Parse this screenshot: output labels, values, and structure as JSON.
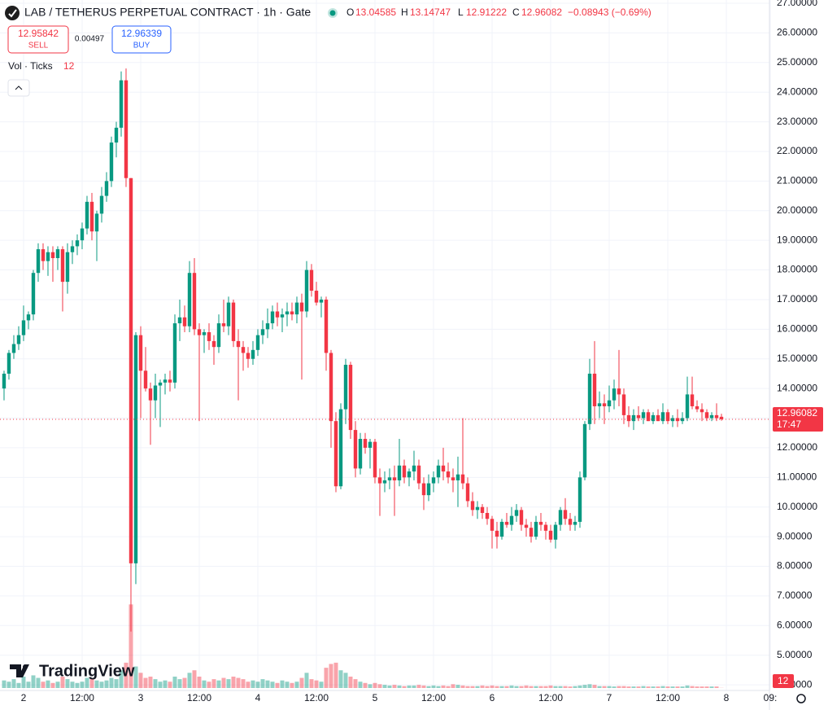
{
  "chart_data": {
    "type": "candlestick",
    "title": "LAB / TETHERUS PERPETUAL CONTRACT · 1h · Gate",
    "ohlc_labels": [
      "O",
      "H",
      "L",
      "C"
    ],
    "change_label": "−0.08943 (−0.69%)",
    "sell": {
      "price": 12.95842,
      "label": "SELL"
    },
    "spread": 0.00497,
    "buy": {
      "price": 12.96339,
      "label": "BUY"
    },
    "volume_label": "Vol · Ticks",
    "countdown": "17:47",
    "brand": "TradingView",
    "up_color": "#089981",
    "down_color": "#f23645",
    "grid": true,
    "xlim": [
      -0.83,
      156.83
    ],
    "ylim": [
      3.81,
      27.11
    ],
    "vlim": [
      0,
      9000
    ],
    "xticks": [
      {
        "value": 4,
        "label": "2"
      },
      {
        "value": 16,
        "label": "12:00"
      },
      {
        "value": 28,
        "label": "3"
      },
      {
        "value": 40,
        "label": "12:00"
      },
      {
        "value": 52,
        "label": "4"
      },
      {
        "value": 64,
        "label": "12:00"
      },
      {
        "value": 76,
        "label": "5"
      },
      {
        "value": 88,
        "label": "12:00"
      },
      {
        "value": 100,
        "label": "6"
      },
      {
        "value": 112,
        "label": "12:00"
      },
      {
        "value": 124,
        "label": "7"
      },
      {
        "value": 136,
        "label": "12:00"
      },
      {
        "value": 148,
        "label": "8"
      },
      {
        "value": 157,
        "label": "09:"
      }
    ],
    "yticks": [
      {
        "value": 27,
        "label": "27.00000"
      },
      {
        "value": 26,
        "label": "26.00000"
      },
      {
        "value": 25,
        "label": "25.00000"
      },
      {
        "value": 24,
        "label": "24.00000"
      },
      {
        "value": 23,
        "label": "23.00000"
      },
      {
        "value": 22,
        "label": "22.00000"
      },
      {
        "value": 21,
        "label": "21.00000"
      },
      {
        "value": 20,
        "label": "20.00000"
      },
      {
        "value": 19,
        "label": "19.00000"
      },
      {
        "value": 18,
        "label": "18.00000"
      },
      {
        "value": 17,
        "label": "17.00000"
      },
      {
        "value": 16,
        "label": "16.00000"
      },
      {
        "value": 15,
        "label": "15.00000"
      },
      {
        "value": 14,
        "label": "14.00000"
      },
      {
        "value": 13,
        "label": "13.00000"
      },
      {
        "value": 12,
        "label": "12.00000"
      },
      {
        "value": 11,
        "label": "11.00000"
      },
      {
        "value": 10,
        "label": "10.00000"
      },
      {
        "value": 9,
        "label": "9.00000"
      },
      {
        "value": 8,
        "label": "8.00000"
      },
      {
        "value": 7,
        "label": "7.00000"
      },
      {
        "value": 6,
        "label": "6.00000"
      },
      {
        "value": 5,
        "label": "5.00000"
      },
      {
        "value": 4,
        "label": "4.00000"
      }
    ],
    "candles": [
      [
        14.0,
        14.6,
        13.6,
        14.5
      ],
      [
        14.5,
        15.3,
        14.3,
        15.2
      ],
      [
        15.2,
        15.8,
        15.0,
        15.5
      ],
      [
        15.5,
        16.1,
        15.3,
        15.8
      ],
      [
        15.8,
        16.8,
        15.6,
        16.3
      ],
      [
        16.3,
        16.6,
        16.0,
        16.5
      ],
      [
        16.5,
        18.0,
        16.3,
        17.9
      ],
      [
        17.9,
        18.9,
        17.6,
        18.7
      ],
      [
        18.7,
        18.9,
        18.0,
        18.3
      ],
      [
        18.3,
        18.8,
        17.8,
        18.6
      ],
      [
        18.6,
        18.8,
        17.6,
        18.4
      ],
      [
        18.4,
        18.8,
        18.0,
        18.7
      ],
      [
        18.7,
        18.8,
        16.6,
        17.6
      ],
      [
        17.6,
        18.9,
        17.2,
        18.6
      ],
      [
        18.6,
        19.0,
        18.2,
        18.8
      ],
      [
        18.8,
        19.2,
        18.5,
        19.0
      ],
      [
        19.0,
        19.6,
        18.7,
        19.4
      ],
      [
        19.4,
        20.5,
        19.2,
        20.3
      ],
      [
        20.3,
        20.6,
        19.0,
        19.3
      ],
      [
        19.3,
        20.0,
        18.3,
        19.9
      ],
      [
        19.9,
        20.8,
        19.6,
        20.5
      ],
      [
        20.5,
        21.3,
        20.3,
        21.0
      ],
      [
        21.0,
        22.5,
        20.8,
        22.3
      ],
      [
        22.3,
        23.0,
        21.8,
        22.8
      ],
      [
        22.8,
        24.7,
        22.5,
        24.4
      ],
      [
        24.4,
        24.8,
        20.8,
        21.1
      ],
      [
        21.1,
        21.1,
        5.8,
        8.1
      ],
      [
        8.1,
        15.9,
        7.4,
        15.8
      ],
      [
        15.8,
        16.1,
        13.0,
        14.6
      ],
      [
        14.6,
        15.4,
        13.9,
        14.0
      ],
      [
        14.0,
        14.2,
        12.1,
        13.6
      ],
      [
        13.6,
        14.5,
        13.0,
        14.1
      ],
      [
        14.1,
        14.3,
        12.7,
        14.2
      ],
      [
        14.2,
        14.5,
        13.8,
        14.3
      ],
      [
        14.3,
        14.6,
        13.9,
        14.2
      ],
      [
        14.2,
        16.5,
        14.0,
        16.2
      ],
      [
        16.2,
        17.0,
        15.6,
        16.4
      ],
      [
        16.4,
        16.8,
        15.9,
        16.1
      ],
      [
        16.1,
        18.3,
        15.9,
        17.9
      ],
      [
        17.9,
        18.4,
        15.8,
        16.0
      ],
      [
        16.0,
        16.2,
        12.9,
        15.8
      ],
      [
        15.8,
        16.0,
        15.2,
        15.9
      ],
      [
        15.9,
        16.2,
        15.3,
        15.6
      ],
      [
        15.6,
        15.8,
        14.8,
        15.4
      ],
      [
        15.4,
        16.5,
        15.2,
        16.2
      ],
      [
        16.2,
        17.0,
        15.9,
        16.1
      ],
      [
        16.1,
        17.1,
        15.8,
        16.9
      ],
      [
        16.9,
        17.0,
        15.4,
        15.6
      ],
      [
        15.6,
        16.0,
        13.6,
        15.4
      ],
      [
        15.4,
        15.6,
        14.6,
        15.2
      ],
      [
        15.2,
        15.4,
        14.7,
        15.0
      ],
      [
        15.0,
        15.6,
        14.8,
        15.3
      ],
      [
        15.3,
        16.0,
        15.1,
        15.8
      ],
      [
        15.8,
        16.3,
        15.5,
        16.0
      ],
      [
        16.0,
        16.7,
        15.7,
        16.2
      ],
      [
        16.2,
        16.8,
        16.0,
        16.6
      ],
      [
        16.6,
        16.9,
        16.1,
        16.4
      ],
      [
        16.4,
        16.7,
        15.9,
        16.5
      ],
      [
        16.5,
        16.9,
        16.1,
        16.6
      ],
      [
        16.6,
        16.9,
        16.3,
        16.5
      ],
      [
        16.5,
        17.1,
        16.2,
        16.9
      ],
      [
        16.9,
        17.2,
        14.3,
        16.6
      ],
      [
        16.6,
        18.3,
        16.4,
        18.0
      ],
      [
        18.0,
        18.2,
        17.1,
        17.3
      ],
      [
        17.3,
        17.6,
        16.8,
        16.9
      ],
      [
        16.9,
        17.1,
        16.4,
        17.0
      ],
      [
        17.0,
        17.1,
        14.6,
        15.2
      ],
      [
        15.2,
        15.3,
        12.0,
        12.9
      ],
      [
        12.9,
        13.2,
        10.5,
        10.7
      ],
      [
        10.7,
        13.5,
        10.6,
        13.3
      ],
      [
        13.3,
        15.0,
        12.8,
        14.8
      ],
      [
        14.8,
        14.9,
        12.3,
        12.6
      ],
      [
        12.6,
        12.9,
        11.0,
        11.3
      ],
      [
        11.3,
        12.5,
        11.1,
        12.3
      ],
      [
        12.3,
        12.5,
        11.8,
        12.0
      ],
      [
        12.0,
        12.3,
        11.3,
        12.2
      ],
      [
        12.2,
        12.3,
        10.8,
        11.0
      ],
      [
        11.0,
        11.3,
        9.7,
        10.8
      ],
      [
        10.8,
        11.2,
        10.5,
        10.9
      ],
      [
        10.9,
        11.3,
        10.6,
        11.0
      ],
      [
        11.0,
        11.4,
        9.7,
        10.9
      ],
      [
        10.9,
        12.3,
        10.7,
        11.4
      ],
      [
        11.4,
        11.6,
        10.8,
        11.0
      ],
      [
        11.0,
        11.3,
        10.7,
        11.2
      ],
      [
        11.2,
        11.9,
        10.9,
        11.4
      ],
      [
        11.4,
        11.6,
        10.6,
        10.8
      ],
      [
        10.8,
        11.0,
        9.9,
        10.4
      ],
      [
        10.4,
        11.1,
        10.2,
        10.8
      ],
      [
        10.8,
        11.2,
        10.5,
        11.0
      ],
      [
        11.0,
        11.6,
        10.8,
        11.4
      ],
      [
        11.4,
        12.0,
        10.9,
        11.2
      ],
      [
        11.2,
        11.5,
        10.8,
        11.0
      ],
      [
        11.0,
        11.3,
        10.5,
        10.9
      ],
      [
        10.9,
        11.7,
        10.0,
        11.1
      ],
      [
        11.1,
        13.0,
        10.6,
        10.8
      ],
      [
        10.8,
        11.0,
        10.0,
        10.2
      ],
      [
        10.2,
        10.5,
        9.7,
        9.9
      ],
      [
        9.9,
        10.2,
        9.6,
        10.0
      ],
      [
        10.0,
        10.1,
        9.6,
        9.8
      ],
      [
        9.8,
        10.0,
        9.4,
        9.6
      ],
      [
        9.6,
        9.7,
        8.6,
        9.2
      ],
      [
        9.2,
        9.5,
        8.6,
        9.0
      ],
      [
        9.0,
        9.6,
        8.9,
        9.5
      ],
      [
        9.5,
        9.8,
        9.3,
        9.4
      ],
      [
        9.4,
        10.0,
        9.2,
        9.7
      ],
      [
        9.7,
        10.1,
        9.5,
        9.9
      ],
      [
        9.9,
        10.0,
        9.2,
        9.4
      ],
      [
        9.4,
        9.6,
        9.0,
        9.3
      ],
      [
        9.3,
        9.5,
        8.8,
        9.0
      ],
      [
        9.0,
        9.7,
        8.9,
        9.5
      ],
      [
        9.5,
        9.8,
        9.2,
        9.4
      ],
      [
        9.4,
        9.5,
        8.9,
        9.2
      ],
      [
        9.2,
        9.4,
        8.8,
        8.9
      ],
      [
        8.9,
        9.5,
        8.6,
        9.4
      ],
      [
        9.4,
        10.0,
        9.2,
        9.9
      ],
      [
        9.9,
        10.3,
        9.4,
        9.6
      ],
      [
        9.6,
        9.8,
        9.2,
        9.4
      ],
      [
        9.4,
        9.7,
        9.2,
        9.5
      ],
      [
        9.5,
        11.2,
        9.3,
        11.0
      ],
      [
        11.0,
        12.9,
        10.9,
        12.8
      ],
      [
        12.8,
        15.0,
        12.6,
        14.5
      ],
      [
        14.5,
        15.6,
        12.8,
        13.4
      ],
      [
        13.4,
        13.9,
        13.0,
        13.5
      ],
      [
        13.5,
        13.8,
        12.8,
        13.4
      ],
      [
        13.4,
        14.1,
        13.2,
        13.6
      ],
      [
        13.6,
        14.3,
        13.3,
        14.0
      ],
      [
        14.0,
        15.3,
        13.4,
        13.8
      ],
      [
        13.8,
        14.0,
        12.8,
        13.1
      ],
      [
        13.1,
        13.4,
        12.7,
        12.9
      ],
      [
        12.9,
        13.3,
        12.6,
        13.1
      ],
      [
        13.1,
        13.4,
        12.9,
        13.0
      ],
      [
        13.0,
        13.3,
        12.8,
        13.2
      ],
      [
        13.2,
        13.3,
        12.9,
        12.9
      ],
      [
        12.9,
        13.2,
        12.8,
        13.1
      ],
      [
        13.1,
        13.3,
        12.9,
        12.9
      ],
      [
        12.9,
        13.5,
        12.8,
        13.2
      ],
      [
        13.2,
        13.3,
        12.8,
        12.9
      ],
      [
        12.9,
        13.1,
        12.7,
        13.0
      ],
      [
        13.0,
        13.3,
        12.7,
        12.9
      ],
      [
        12.9,
        13.2,
        12.8,
        13.0
      ],
      [
        13.0,
        14.4,
        12.9,
        13.8
      ],
      [
        13.8,
        14.4,
        13.3,
        13.4
      ],
      [
        13.4,
        13.6,
        13.2,
        13.3
      ],
      [
        13.3,
        13.5,
        12.9,
        13.2
      ],
      [
        13.2,
        13.3,
        12.9,
        13.0
      ],
      [
        13.0,
        13.2,
        12.9,
        13.1
      ],
      [
        13.1,
        13.5,
        12.9,
        13.0
      ],
      [
        13.04585,
        13.14747,
        12.91222,
        12.96082
      ]
    ],
    "volume": [
      600,
      500,
      700,
      400,
      900,
      500,
      1000,
      800,
      500,
      600,
      400,
      500,
      900,
      700,
      500,
      400,
      500,
      800,
      700,
      600,
      500,
      600,
      800,
      700,
      1400,
      2000,
      6600,
      1700,
      1200,
      800,
      900,
      700,
      500,
      600,
      500,
      900,
      700,
      800,
      1200,
      1400,
      900,
      600,
      500,
      700,
      600,
      800,
      700,
      900,
      800,
      700,
      500,
      600,
      500,
      700,
      600,
      500,
      400,
      600,
      500,
      400,
      500,
      800,
      1200,
      700,
      600,
      500,
      1600,
      1900,
      2000,
      1400,
      1200,
      900,
      700,
      500,
      400,
      300,
      400,
      300,
      250,
      200,
      250,
      200,
      150,
      200,
      200,
      250,
      200,
      150,
      200,
      150,
      200,
      150,
      300,
      250,
      200,
      150,
      150,
      150,
      200,
      150,
      200,
      150,
      150,
      150,
      200,
      150,
      150,
      200,
      150,
      150,
      150,
      150,
      200,
      150,
      150,
      150,
      120,
      150,
      200,
      250,
      300,
      250,
      150,
      150,
      150,
      120,
      150,
      150,
      120,
      120,
      120,
      150,
      120,
      120,
      120,
      150,
      120,
      120,
      120,
      120,
      200,
      150,
      120,
      120,
      120,
      120,
      120,
      12
    ]
  }
}
